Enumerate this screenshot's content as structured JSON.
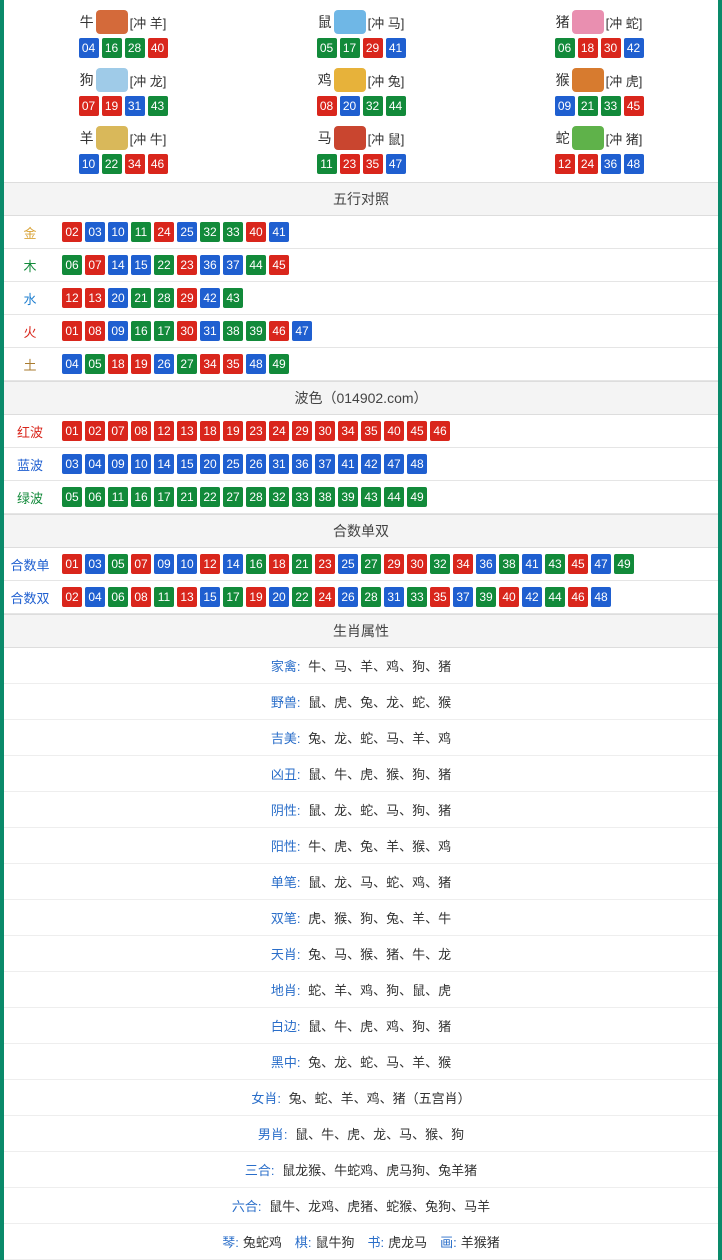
{
  "colors": {
    "red": "#d9261c",
    "blue": "#1f5fd0",
    "green": "#128a3a",
    "border": "#0a8a6a",
    "header_bg": "#f4f4f4",
    "header_text": "#444444",
    "row_border": "#e5e5e5",
    "text": "#333333",
    "link": "#2a6ec9"
  },
  "ball_color_map_by_mod": {
    "red": [
      "01",
      "02",
      "07",
      "08",
      "12",
      "13",
      "18",
      "19",
      "23",
      "24",
      "29",
      "30",
      "34",
      "35",
      "40",
      "45",
      "46"
    ],
    "blue": [
      "03",
      "04",
      "09",
      "10",
      "14",
      "15",
      "20",
      "25",
      "26",
      "31",
      "36",
      "37",
      "41",
      "42",
      "47",
      "48"
    ],
    "green": [
      "05",
      "06",
      "11",
      "16",
      "17",
      "21",
      "22",
      "27",
      "28",
      "32",
      "33",
      "38",
      "39",
      "43",
      "44",
      "49"
    ]
  },
  "zodiac_icon_colors": {
    "牛": "#d46a3a",
    "鼠": "#6fb7e6",
    "猪": "#e98fb0",
    "狗": "#9fcbe8",
    "鸡": "#e7b23a",
    "猴": "#d77b2f",
    "羊": "#d9b85a",
    "马": "#c9452f",
    "蛇": "#5fb24a"
  },
  "zodiac": [
    {
      "name": "牛",
      "clash": "[冲 羊]",
      "nums": [
        "04",
        "16",
        "28",
        "40"
      ]
    },
    {
      "name": "鼠",
      "clash": "[冲 马]",
      "nums": [
        "05",
        "17",
        "29",
        "41"
      ]
    },
    {
      "name": "猪",
      "clash": "[冲 蛇]",
      "nums": [
        "06",
        "18",
        "30",
        "42"
      ]
    },
    {
      "name": "狗",
      "clash": "[冲 龙]",
      "nums": [
        "07",
        "19",
        "31",
        "43"
      ]
    },
    {
      "name": "鸡",
      "clash": "[冲 兔]",
      "nums": [
        "08",
        "20",
        "32",
        "44"
      ]
    },
    {
      "name": "猴",
      "clash": "[冲 虎]",
      "nums": [
        "09",
        "21",
        "33",
        "45"
      ]
    },
    {
      "name": "羊",
      "clash": "[冲 牛]",
      "nums": [
        "10",
        "22",
        "34",
        "46"
      ]
    },
    {
      "name": "马",
      "clash": "[冲 鼠]",
      "nums": [
        "11",
        "23",
        "35",
        "47"
      ]
    },
    {
      "name": "蛇",
      "clash": "[冲 猪]",
      "nums": [
        "12",
        "24",
        "36",
        "48"
      ]
    }
  ],
  "section_wuxing": {
    "title": "五行对照",
    "rows": [
      {
        "label": "金",
        "label_color": "#d9a43a",
        "nums": [
          "02",
          "03",
          "10",
          "11",
          "24",
          "25",
          "32",
          "33",
          "40",
          "41"
        ]
      },
      {
        "label": "木",
        "label_color": "#128a3a",
        "nums": [
          "06",
          "07",
          "14",
          "15",
          "22",
          "23",
          "36",
          "37",
          "44",
          "45"
        ]
      },
      {
        "label": "水",
        "label_color": "#1f7fd0",
        "nums": [
          "12",
          "13",
          "20",
          "21",
          "28",
          "29",
          "42",
          "43"
        ]
      },
      {
        "label": "火",
        "label_color": "#d9261c",
        "nums": [
          "01",
          "08",
          "09",
          "16",
          "17",
          "30",
          "31",
          "38",
          "39",
          "46",
          "47"
        ]
      },
      {
        "label": "土",
        "label_color": "#a97b2f",
        "nums": [
          "04",
          "05",
          "18",
          "19",
          "26",
          "27",
          "34",
          "35",
          "48",
          "49"
        ]
      }
    ]
  },
  "section_bose": {
    "title": "波色（014902.com）",
    "rows": [
      {
        "label": "红波",
        "label_color": "#d9261c",
        "nums": [
          "01",
          "02",
          "07",
          "08",
          "12",
          "13",
          "18",
          "19",
          "23",
          "24",
          "29",
          "30",
          "34",
          "35",
          "40",
          "45",
          "46"
        ]
      },
      {
        "label": "蓝波",
        "label_color": "#1f5fd0",
        "nums": [
          "03",
          "04",
          "09",
          "10",
          "14",
          "15",
          "20",
          "25",
          "26",
          "31",
          "36",
          "37",
          "41",
          "42",
          "47",
          "48"
        ]
      },
      {
        "label": "绿波",
        "label_color": "#128a3a",
        "nums": [
          "05",
          "06",
          "11",
          "16",
          "17",
          "21",
          "22",
          "27",
          "28",
          "32",
          "33",
          "38",
          "39",
          "43",
          "44",
          "49"
        ]
      }
    ]
  },
  "section_heshu": {
    "title": "合数单双",
    "rows": [
      {
        "label": "合数单",
        "label_color": "#1f5fd0",
        "nums": [
          "01",
          "03",
          "05",
          "07",
          "09",
          "10",
          "12",
          "14",
          "16",
          "18",
          "21",
          "23",
          "25",
          "27",
          "29",
          "30",
          "32",
          "34",
          "36",
          "38",
          "41",
          "43",
          "45",
          "47",
          "49"
        ]
      },
      {
        "label": "合数双",
        "label_color": "#1f5fd0",
        "nums": [
          "02",
          "04",
          "06",
          "08",
          "11",
          "13",
          "15",
          "17",
          "19",
          "20",
          "22",
          "24",
          "26",
          "28",
          "31",
          "33",
          "35",
          "37",
          "39",
          "40",
          "42",
          "44",
          "46",
          "48"
        ]
      }
    ]
  },
  "section_attr": {
    "title": "生肖属性",
    "rows": [
      {
        "key": "家禽",
        "val": "牛、马、羊、鸡、狗、猪"
      },
      {
        "key": "野兽",
        "val": "鼠、虎、兔、龙、蛇、猴"
      },
      {
        "key": "吉美",
        "val": "兔、龙、蛇、马、羊、鸡"
      },
      {
        "key": "凶丑",
        "val": "鼠、牛、虎、猴、狗、猪"
      },
      {
        "key": "阴性",
        "val": "鼠、龙、蛇、马、狗、猪"
      },
      {
        "key": "阳性",
        "val": "牛、虎、兔、羊、猴、鸡"
      },
      {
        "key": "单笔",
        "val": "鼠、龙、马、蛇、鸡、猪"
      },
      {
        "key": "双笔",
        "val": "虎、猴、狗、兔、羊、牛"
      },
      {
        "key": "天肖",
        "val": "兔、马、猴、猪、牛、龙"
      },
      {
        "key": "地肖",
        "val": "蛇、羊、鸡、狗、鼠、虎"
      },
      {
        "key": "白边",
        "val": "鼠、牛、虎、鸡、狗、猪"
      },
      {
        "key": "黑中",
        "val": "兔、龙、蛇、马、羊、猴"
      },
      {
        "key": "女肖",
        "val": "兔、蛇、羊、鸡、猪（五宫肖）"
      },
      {
        "key": "男肖",
        "val": "鼠、牛、虎、龙、马、猴、狗"
      },
      {
        "key": "三合",
        "val": "鼠龙猴、牛蛇鸡、虎马狗、兔羊猪"
      },
      {
        "key": "六合",
        "val": "鼠牛、龙鸡、虎猪、蛇猴、兔狗、马羊"
      }
    ],
    "footer_parts": [
      {
        "k": "琴",
        "v": "兔蛇鸡"
      },
      {
        "k": "棋",
        "v": "鼠牛狗"
      },
      {
        "k": "书",
        "v": "虎龙马"
      },
      {
        "k": "画",
        "v": "羊猴猪"
      }
    ]
  }
}
